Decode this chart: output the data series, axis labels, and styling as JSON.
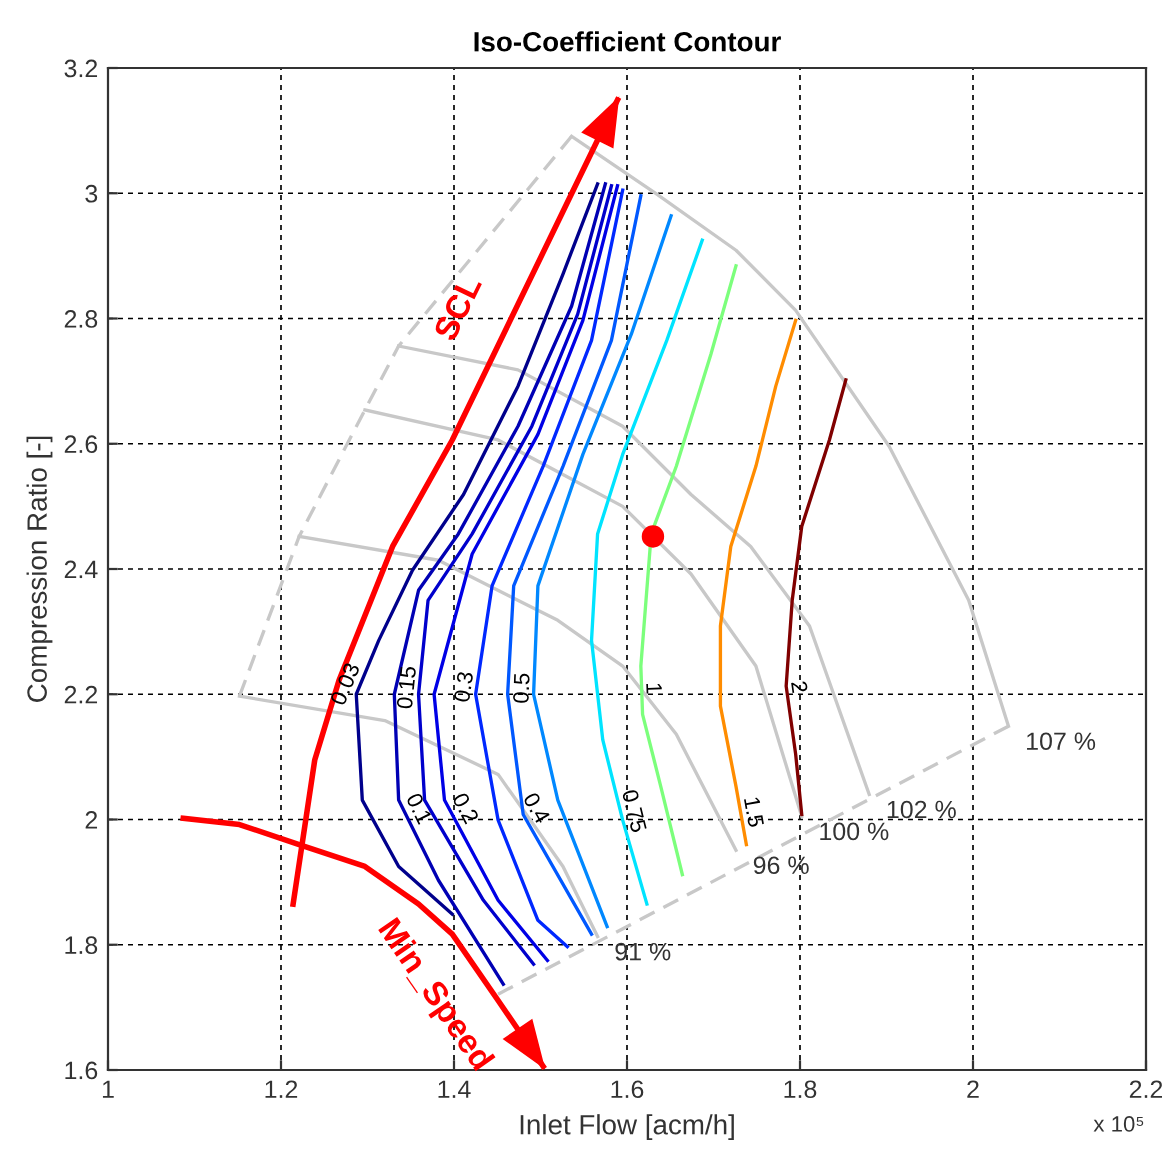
{
  "chart_data": {
    "type": "line",
    "title": "Iso-Coefficient Contour",
    "xlabel": "Inlet Flow [acm/h]",
    "ylabel": "Compression Ratio [-]",
    "xlim": [
      1,
      2.2
    ],
    "xticks": [
      1,
      1.2,
      1.4,
      1.6,
      1.8,
      2,
      2.2
    ],
    "ylim": [
      1.6,
      3.2
    ],
    "yticks": [
      1.6,
      1.8,
      2,
      2.2,
      2.4,
      2.6,
      2.8,
      3,
      3.2
    ],
    "grid": true,
    "series": [
      {
        "color": "#c8c8c8",
        "line_style": "dashed",
        "x": [
          1.536,
          1.336,
          1.297,
          1.221,
          1.152
        ],
        "values": [
          3.091,
          2.756,
          2.654,
          2.452,
          2.197
        ]
      },
      {
        "color": "#c8c8c8",
        "line_style": "dashed",
        "x": [
          1.451,
          2.041
        ],
        "values": [
          1.721,
          2.149
        ]
      },
      {
        "color": "#c8c8c8",
        "x": [
          1.536,
          1.634,
          1.726,
          1.795,
          1.903,
          1.995,
          2.041
        ],
        "values": [
          3.091,
          2.999,
          2.909,
          2.813,
          2.596,
          2.35,
          2.149
        ]
      },
      {
        "color": "#c8c8c8",
        "x": [
          1.336,
          1.474,
          1.595,
          1.674,
          1.743,
          1.811,
          1.88
        ],
        "values": [
          2.756,
          2.718,
          2.628,
          2.519,
          2.436,
          2.309,
          2.04
        ]
      },
      {
        "color": "#c8c8c8",
        "x": [
          1.297,
          1.451,
          1.595,
          1.674,
          1.749,
          1.802
        ],
        "values": [
          2.654,
          2.606,
          2.5,
          2.392,
          2.245,
          2.005
        ]
      },
      {
        "color": "#c8c8c8",
        "x": [
          1.221,
          1.382,
          1.52,
          1.595,
          1.657,
          1.726
        ],
        "values": [
          2.452,
          2.414,
          2.318,
          2.245,
          2.136,
          1.951
        ]
      },
      {
        "color": "#c8c8c8",
        "x": [
          1.152,
          1.32,
          1.451,
          1.526,
          1.566
        ],
        "values": [
          2.197,
          2.158,
          2.072,
          1.925,
          1.813
        ]
      },
      {
        "name": "0.03",
        "color": "#00008c",
        "x": [
          1.566,
          1.526,
          1.474,
          1.411,
          1.352,
          1.313,
          1.287,
          1.294,
          1.336,
          1.398
        ],
        "values": [
          3.015,
          2.871,
          2.692,
          2.519,
          2.398,
          2.286,
          2.2,
          2.031,
          1.925,
          1.849
        ]
      },
      {
        "name": "0.1",
        "color": "#0000b4",
        "x": [
          1.575,
          1.536,
          1.474,
          1.405,
          1.359,
          1.331,
          1.336,
          1.382,
          1.457
        ],
        "values": [
          3.015,
          2.82,
          2.628,
          2.456,
          2.366,
          2.2,
          2.031,
          1.903,
          1.737
        ]
      },
      {
        "name": "0.15",
        "color": "#0000cc",
        "x": [
          1.582,
          1.543,
          1.49,
          1.421,
          1.37,
          1.359,
          1.366,
          1.434,
          1.492
        ],
        "values": [
          3.012,
          2.807,
          2.628,
          2.456,
          2.35,
          2.2,
          2.031,
          1.871,
          1.769
        ]
      },
      {
        "name": "0.2",
        "color": "#0000e6",
        "x": [
          1.589,
          1.549,
          1.497,
          1.421,
          1.377,
          1.389,
          1.451,
          1.508
        ],
        "values": [
          3.012,
          2.797,
          2.615,
          2.424,
          2.2,
          2.031,
          1.871,
          1.775
        ]
      },
      {
        "name": "0.3",
        "color": "#0028ff",
        "x": [
          1.595,
          1.559,
          1.503,
          1.444,
          1.425,
          1.451,
          1.497,
          1.531
        ],
        "values": [
          3.005,
          2.765,
          2.564,
          2.373,
          2.2,
          1.999,
          1.839,
          1.797
        ]
      },
      {
        "name": "0.4",
        "color": "#0058ff",
        "x": [
          1.616,
          1.582,
          1.526,
          1.469,
          1.462,
          1.48,
          1.559
        ],
        "values": [
          2.996,
          2.765,
          2.564,
          2.373,
          2.2,
          2.008,
          1.817
        ]
      },
      {
        "name": "0.5",
        "color": "#0088ff",
        "x": [
          1.651,
          1.605,
          1.549,
          1.497,
          1.492,
          1.52,
          1.577
        ],
        "values": [
          2.964,
          2.775,
          2.583,
          2.373,
          2.2,
          2.031,
          1.829
        ]
      },
      {
        "name": "0.75",
        "color": "#00e4ff",
        "x": [
          1.687,
          1.646,
          1.595,
          1.566,
          1.559,
          1.572,
          1.595,
          1.623
        ],
        "values": [
          2.925,
          2.765,
          2.583,
          2.456,
          2.286,
          2.127,
          1.999,
          1.865
        ]
      },
      {
        "name": "1",
        "color": "#7cff7c",
        "x": [
          1.726,
          1.697,
          1.657,
          1.628,
          1.616,
          1.618,
          1.639,
          1.664
        ],
        "values": [
          2.884,
          2.743,
          2.564,
          2.456,
          2.245,
          2.168,
          2.053,
          1.912
        ]
      },
      {
        "name": "1.5",
        "color": "#ff8c00",
        "x": [
          1.795,
          1.772,
          1.749,
          1.72,
          1.708,
          1.708,
          1.726,
          1.738
        ],
        "values": [
          2.797,
          2.692,
          2.564,
          2.436,
          2.309,
          2.181,
          2.053,
          1.96
        ]
      },
      {
        "name": "2",
        "color": "#800000",
        "x": [
          1.853,
          1.834,
          1.802,
          1.791,
          1.784,
          1.795,
          1.802
        ],
        "values": [
          2.702,
          2.606,
          2.468,
          2.35,
          2.213,
          2.104,
          2.008
        ]
      },
      {
        "color": "#ff0000",
        "x": [
          1.214,
          1.239,
          1.267,
          1.329,
          1.398,
          1.566,
          1.589
        ],
        "values": [
          1.865,
          2.095,
          2.222,
          2.436,
          2.606,
          3.085,
          3.149
        ]
      },
      {
        "color": "#ff0000",
        "x": [
          1.087,
          1.152,
          1.221,
          1.297,
          1.359,
          1.398,
          1.451,
          1.503
        ],
        "values": [
          2.002,
          1.992,
          1.96,
          1.925,
          1.865,
          1.817,
          1.711,
          1.606
        ]
      },
      {
        "type": "scatter",
        "color": "#ff0000",
        "marker": "circle",
        "x": [
          1.63
        ],
        "values": [
          2.452
        ]
      }
    ],
    "annotations": [
      {
        "text": "SCL",
        "x": 1.459,
        "y": 2.78
      },
      {
        "text": "Min_Speed",
        "x": 1.4245,
        "y": 1.764
      },
      {
        "text": "91 %",
        "x": 1.566,
        "y": 1.813
      },
      {
        "text": "96 %",
        "x": 1.726,
        "y": 1.951
      },
      {
        "text": "100 %",
        "x": 1.802,
        "y": 2.005
      },
      {
        "text": "102 %",
        "x": 1.88,
        "y": 2.04
      },
      {
        "text": "107 %",
        "x": 2.041,
        "y": 2.149
      },
      "x 10⁵"
    ]
  }
}
